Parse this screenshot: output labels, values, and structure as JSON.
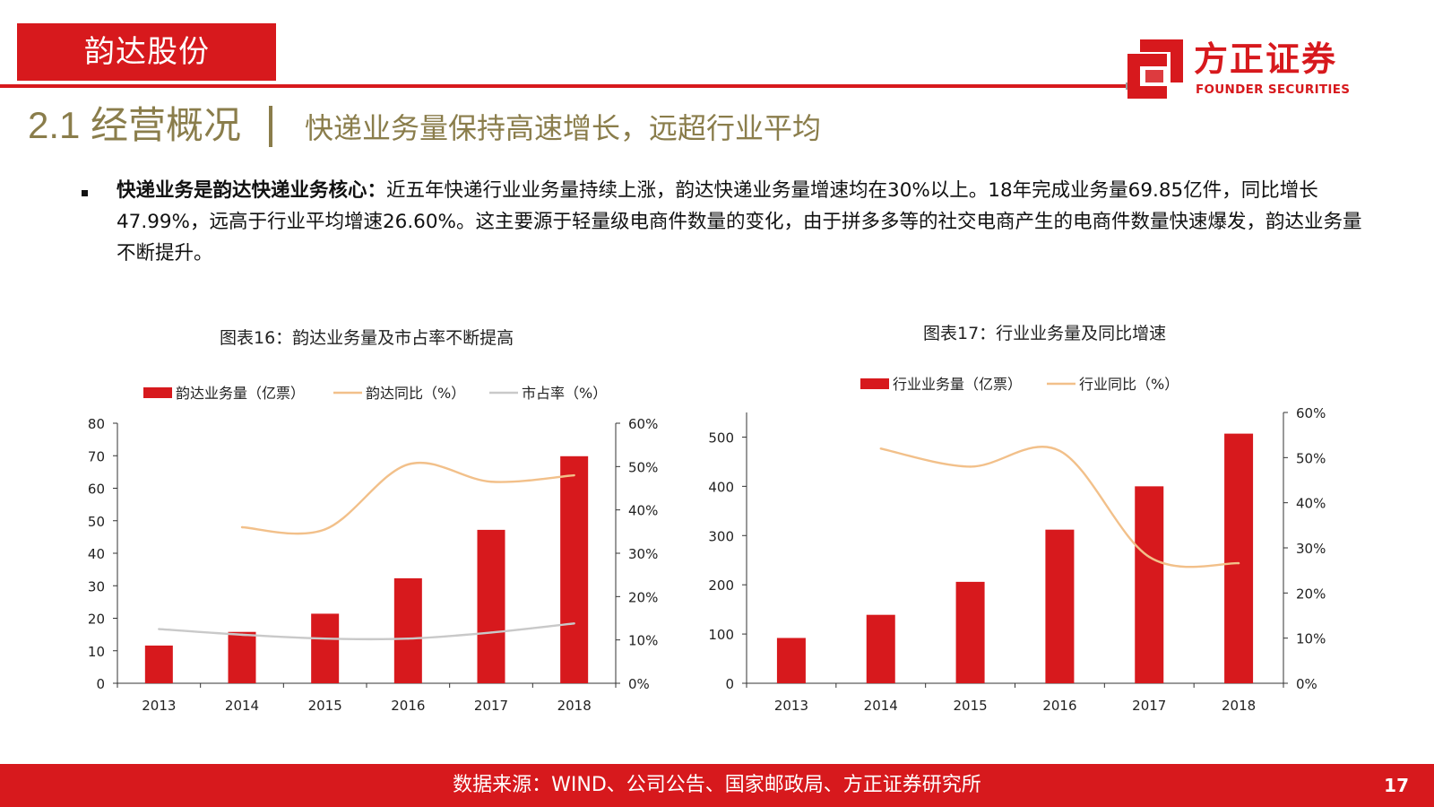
{
  "header": {
    "tag_label": "韵达股份",
    "section_title": "2.1 经营概况",
    "section_subtitle": "快递业务量保持高速增长，远超行业平均",
    "accent_color": "#d7191d",
    "title_color": "#8a7d4b"
  },
  "logo": {
    "name_cn": "方正证券",
    "name_en": "FOUNDER SECURITIES",
    "icon": "founder-logo-icon"
  },
  "body": {
    "lead": "快递业务是韵达快递业务核心：",
    "text": "近五年快递行业业务量持续上涨，韵达快递业务量增速均在30%以上。18年完成业务量69.85亿件，同比增长47.99%，远高于行业平均增速26.60%。这主要源于轻量级电商件数量的变化，由于拼多多等的社交电商产生的电商件数量快速爆发，韵达业务量不断提升。"
  },
  "chart_data": [
    {
      "title": "图表16：韵达业务量及市占率不断提高",
      "type": "bar",
      "categories": [
        "2013",
        "2014",
        "2015",
        "2016",
        "2017",
        "2018"
      ],
      "series": [
        {
          "name": "韵达业务量（亿票）",
          "type": "bar",
          "axis": "left",
          "color": "#d7191d",
          "values": [
            11.6,
            15.8,
            21.4,
            32.3,
            47.2,
            69.85
          ]
        },
        {
          "name": "韵达同比（%）",
          "type": "line",
          "axis": "right",
          "color": "#f2c08a",
          "values": [
            null,
            36.0,
            35.5,
            50.5,
            46.5,
            47.99
          ]
        },
        {
          "name": "市占率（%）",
          "type": "line",
          "axis": "right",
          "color": "#c9c9c9",
          "values": [
            12.5,
            11.2,
            10.3,
            10.3,
            11.7,
            13.8
          ]
        }
      ],
      "ylim": [
        0,
        80
      ],
      "yticks": [
        "0",
        "10",
        "20",
        "30",
        "40",
        "50",
        "60",
        "70",
        "80"
      ],
      "y2lim": [
        0,
        60
      ],
      "y2ticks": [
        "0%",
        "10%",
        "20%",
        "30%",
        "40%",
        "50%",
        "60%"
      ],
      "legend": "top",
      "grid": false
    },
    {
      "title": "图表17：行业业务量及同比增速",
      "type": "bar",
      "categories": [
        "2013",
        "2014",
        "2015",
        "2016",
        "2017",
        "2018"
      ],
      "series": [
        {
          "name": "行业业务量（亿票）",
          "type": "bar",
          "axis": "left",
          "color": "#d7191d",
          "values": [
            92,
            139,
            206,
            312,
            400,
            507
          ]
        },
        {
          "name": "行业同比（%）",
          "type": "line",
          "axis": "right",
          "color": "#f2c08a",
          "values": [
            null,
            52.0,
            48.0,
            51.5,
            28.0,
            26.6
          ]
        }
      ],
      "ylim": [
        0,
        550
      ],
      "yticks": [
        "0",
        "100",
        "200",
        "300",
        "400",
        "500"
      ],
      "y2lim": [
        0,
        60
      ],
      "y2ticks": [
        "0%",
        "10%",
        "20%",
        "30%",
        "40%",
        "50%",
        "60%"
      ],
      "legend": "top",
      "grid": false
    }
  ],
  "footer": {
    "source": "数据来源：WIND、公司公告、国家邮政局、方正证券研究所",
    "page_number": "17"
  }
}
